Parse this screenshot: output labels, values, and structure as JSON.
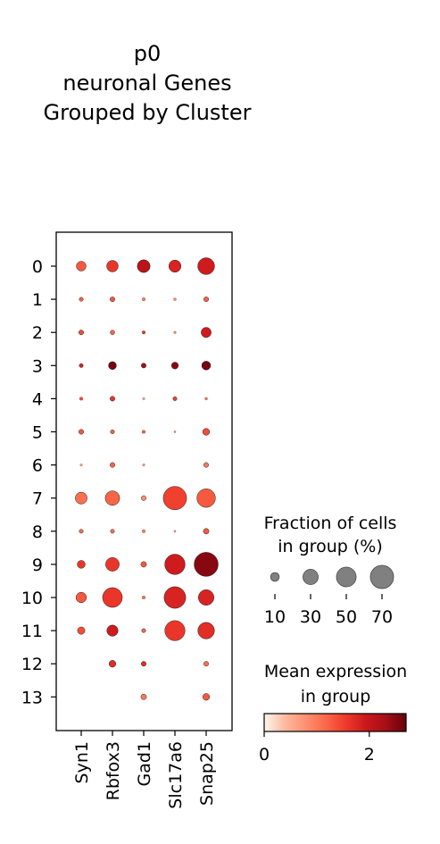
{
  "chart_data": {
    "type": "dotplot",
    "title": [
      "p0",
      "neuronal Genes",
      "Grouped by Cluster"
    ],
    "genes": [
      "Syn1",
      "Rbfox3",
      "Gad1",
      "Slc17a6",
      "Snap25"
    ],
    "clusters": [
      "0",
      "1",
      "2",
      "3",
      "4",
      "5",
      "6",
      "7",
      "8",
      "9",
      "10",
      "11",
      "12",
      "13"
    ],
    "fraction_pct": [
      [
        12,
        17,
        21,
        19,
        36
      ],
      [
        2,
        3,
        1.5,
        1,
        3
      ],
      [
        3,
        2.5,
        1.5,
        0.8,
        13
      ],
      [
        2,
        8,
        3,
        6,
        10
      ],
      [
        1.5,
        3,
        0.8,
        2,
        1
      ],
      [
        3,
        2,
        1.5,
        0.5,
        6
      ],
      [
        0.8,
        3,
        0.8,
        0,
        3
      ],
      [
        18,
        27,
        3,
        70,
        44
      ],
      [
        2,
        2,
        1.5,
        0.5,
        4
      ],
      [
        8,
        24,
        4,
        53,
        74
      ],
      [
        14,
        50,
        1.5,
        60,
        31
      ],
      [
        7,
        16,
        2,
        52,
        35
      ],
      [
        0,
        6,
        3,
        0,
        3
      ],
      [
        0,
        0,
        4,
        0,
        6
      ]
    ],
    "mean_expr": [
      [
        1.3,
        1.6,
        2.1,
        1.8,
        1.9
      ],
      [
        1.2,
        1.3,
        1.0,
        0.9,
        1.2
      ],
      [
        1.4,
        1.2,
        1.6,
        0.9,
        1.9
      ],
      [
        1.8,
        2.6,
        2.3,
        2.5,
        2.6
      ],
      [
        1.4,
        1.6,
        0.6,
        1.5,
        1.1
      ],
      [
        1.3,
        1.2,
        1.3,
        1.0,
        1.4
      ],
      [
        0.6,
        1.2,
        0.7,
        0,
        1.0
      ],
      [
        1.1,
        1.2,
        0.8,
        1.5,
        1.3
      ],
      [
        1.1,
        1.1,
        1.0,
        0.9,
        1.3
      ],
      [
        1.6,
        1.6,
        1.3,
        1.9,
        2.5
      ],
      [
        1.3,
        1.6,
        1.1,
        1.8,
        1.8
      ],
      [
        1.4,
        1.9,
        1.2,
        1.6,
        1.7
      ],
      [
        0,
        1.7,
        1.7,
        0,
        1.1
      ],
      [
        0,
        0,
        1.0,
        0,
        1.3
      ]
    ],
    "size_legend": {
      "title": [
        "Fraction of cells",
        "in group (%)"
      ],
      "values": [
        10,
        30,
        50,
        70
      ],
      "labels": [
        "10",
        "30",
        "50",
        "70"
      ]
    },
    "color_legend": {
      "title": [
        "Mean expression",
        "in group"
      ],
      "min": 0,
      "max": 2.7,
      "tick_values": [
        0,
        2
      ],
      "tick_labels": [
        "0",
        "2"
      ],
      "colormap": "Reds",
      "stops": [
        "#fff5f0",
        "#fcbba1",
        "#fc9272",
        "#fb6a4a",
        "#ef3b2c",
        "#cb181d",
        "#a50f15",
        "#67000d"
      ]
    },
    "size_legend_color": "#808080",
    "frame_color": "#000000"
  }
}
